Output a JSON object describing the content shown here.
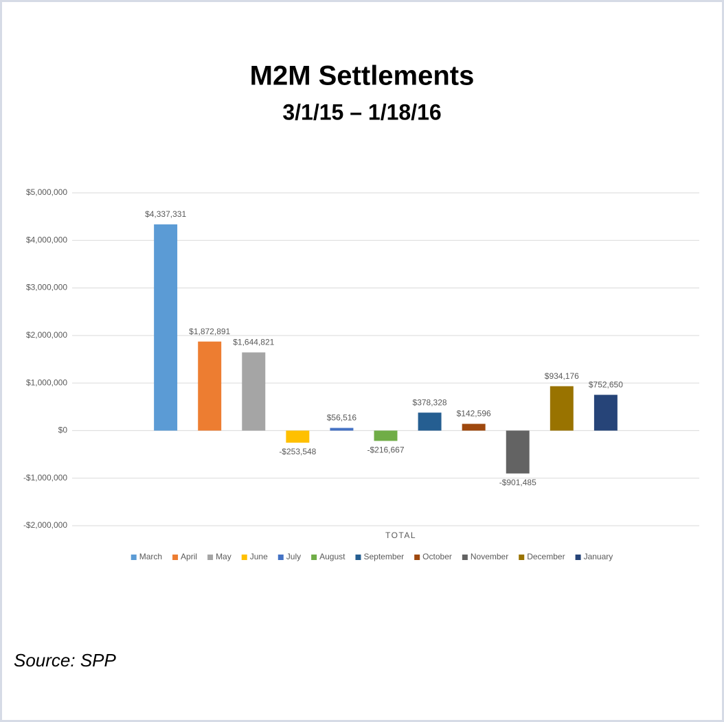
{
  "chart_data": {
    "type": "bar",
    "title": "M2M Settlements",
    "subtitle": "3/1/15 – 1/18/16",
    "categories": [
      "TOTAL"
    ],
    "series": [
      {
        "name": "March",
        "color": "#5b9bd5",
        "values": [
          4337331
        ],
        "value_labels": [
          "$4,337,331"
        ]
      },
      {
        "name": "April",
        "color": "#ed7d31",
        "values": [
          1872891
        ],
        "value_labels": [
          "$1,872,891"
        ]
      },
      {
        "name": "May",
        "color": "#a5a5a5",
        "values": [
          1644821
        ],
        "value_labels": [
          "$1,644,821"
        ]
      },
      {
        "name": "June",
        "color": "#ffc000",
        "values": [
          -253548
        ],
        "value_labels": [
          "-$253,548"
        ]
      },
      {
        "name": "July",
        "color": "#4472c4",
        "values": [
          56516
        ],
        "value_labels": [
          "$56,516"
        ]
      },
      {
        "name": "August",
        "color": "#70ad47",
        "values": [
          -216667
        ],
        "value_labels": [
          "-$216,667"
        ]
      },
      {
        "name": "September",
        "color": "#255e91",
        "values": [
          378328
        ],
        "value_labels": [
          "$378,328"
        ]
      },
      {
        "name": "October",
        "color": "#9e480e",
        "values": [
          142596
        ],
        "value_labels": [
          "$142,596"
        ]
      },
      {
        "name": "November",
        "color": "#636363",
        "values": [
          -901485
        ],
        "value_labels": [
          "-$901,485"
        ]
      },
      {
        "name": "December",
        "color": "#997300",
        "values": [
          934176
        ],
        "value_labels": [
          "$934,176"
        ]
      },
      {
        "name": "January",
        "color": "#264478",
        "values": [
          752650
        ],
        "value_labels": [
          "$752,650"
        ]
      }
    ],
    "ylim": [
      -2000000,
      5000000
    ],
    "yticks": [
      {
        "value": -2000000,
        "label": "-$2,000,000"
      },
      {
        "value": -1000000,
        "label": "-$1,000,000"
      },
      {
        "value": 0,
        "label": "$0"
      },
      {
        "value": 1000000,
        "label": "$1,000,000"
      },
      {
        "value": 2000000,
        "label": "$2,000,000"
      },
      {
        "value": 3000000,
        "label": "$3,000,000"
      },
      {
        "value": 4000000,
        "label": "$4,000,000"
      },
      {
        "value": 5000000,
        "label": "$5,000,000"
      }
    ],
    "grid": true,
    "legend": "bottom",
    "source": "Source: SPP"
  }
}
